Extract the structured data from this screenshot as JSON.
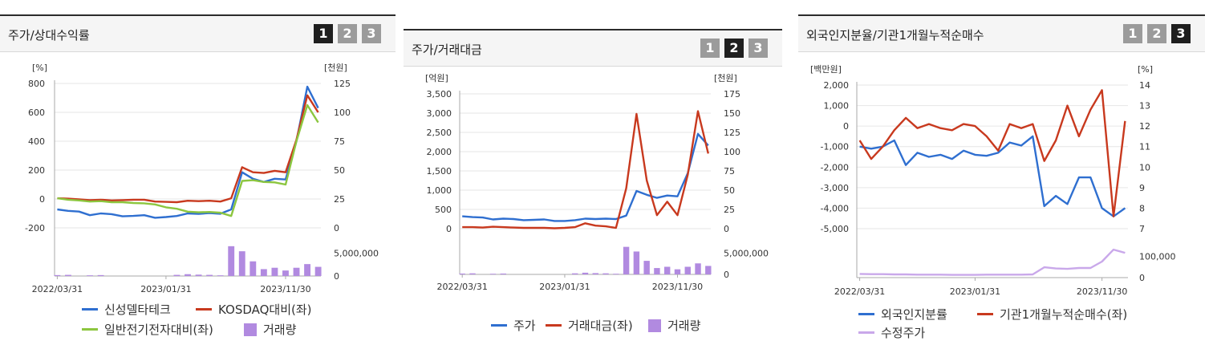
{
  "buttons": [
    "1",
    "2",
    "3"
  ],
  "colors": {
    "blue": "#2f6fd0",
    "red": "#c8391e",
    "green": "#8cc63f",
    "purple": "#b18ae0",
    "lightpurple": "#c9a8ea"
  },
  "panel1": {
    "title": "주가/상대수익률",
    "active": 0,
    "left_unit": "[%]",
    "right_unit": "[천원]",
    "legend": [
      {
        "label": "신성델타테크",
        "kind": "line",
        "color": "#2f6fd0"
      },
      {
        "label": "KOSDAQ대비(좌)",
        "kind": "line",
        "color": "#c8391e"
      },
      {
        "label": "일반전기전자대비(좌)",
        "kind": "line",
        "color": "#8cc63f"
      },
      {
        "label": "거래량",
        "kind": "box",
        "color": "#b18ae0"
      }
    ]
  },
  "panel2": {
    "title": "주가/거래대금",
    "active": 1,
    "left_unit": "[억원]",
    "right_unit": "[천원]",
    "legend": [
      {
        "label": "주가",
        "kind": "line",
        "color": "#2f6fd0"
      },
      {
        "label": "거래대금(좌)",
        "kind": "line",
        "color": "#c8391e"
      },
      {
        "label": "거래량",
        "kind": "box",
        "color": "#b18ae0"
      }
    ]
  },
  "panel3": {
    "title": "외국인지분율/기관1개월누적순매수",
    "active": 2,
    "left_unit": "[백만원]",
    "right_unit": "[%]",
    "legend": [
      {
        "label": "외국인지분률",
        "kind": "line",
        "color": "#2f6fd0"
      },
      {
        "label": "기관1개월누적순매수(좌)",
        "kind": "line",
        "color": "#c8391e"
      },
      {
        "label": "수정주가",
        "kind": "line",
        "color": "#c9a8ea"
      }
    ]
  },
  "chart_data": [
    {
      "type": "line",
      "x_ticks": [
        "2022/03/31",
        "2023/01/31",
        "2023/11/30"
      ],
      "y_left": {
        "range": [
          -200,
          800
        ],
        "ticks": [
          -200,
          0,
          200,
          400,
          600,
          800
        ]
      },
      "y_right": {
        "range": [
          0,
          125
        ],
        "ticks": [
          0,
          25,
          50,
          75,
          100,
          125
        ]
      },
      "series": [
        {
          "name": "신성델타테크",
          "axis": "left",
          "values": [
            -72,
            -82,
            -87,
            -112,
            -100,
            -105,
            -120,
            -117,
            -112,
            -130,
            -125,
            -118,
            -100,
            -103,
            -98,
            -102,
            -72,
            185,
            140,
            118,
            140,
            135,
            400,
            778,
            630
          ]
        },
        {
          "name": "KOSDAQ대비(좌)",
          "axis": "left",
          "values": [
            5,
            2,
            -2,
            -8,
            -5,
            -10,
            -8,
            -5,
            -5,
            -18,
            -20,
            -22,
            -12,
            -15,
            -12,
            -18,
            5,
            220,
            185,
            180,
            195,
            185,
            410,
            718,
            600
          ]
        },
        {
          "name": "일반전기전자대비(좌)",
          "axis": "left",
          "values": [
            5,
            -5,
            -10,
            -18,
            -15,
            -22,
            -22,
            -28,
            -30,
            -38,
            -58,
            -68,
            -88,
            -92,
            -90,
            -95,
            -118,
            125,
            130,
            118,
            115,
            100,
            400,
            650,
            530
          ]
        }
      ],
      "volume": {
        "name": "거래량",
        "tick": "5,000,000",
        "range": [
          0,
          7000000
        ],
        "values": [
          200000,
          250000,
          0,
          150000,
          200000,
          0,
          0,
          0,
          0,
          0,
          0,
          250000,
          400000,
          300000,
          250000,
          150000,
          6500000,
          5400000,
          3200000,
          1500000,
          1800000,
          1200000,
          1800000,
          2600000,
          2000000
        ]
      }
    },
    {
      "type": "line",
      "x_ticks": [
        "2022/03/31",
        "2023/01/31",
        "2023/11/30"
      ],
      "y_left": {
        "range": [
          0,
          3500
        ],
        "ticks": [
          0,
          500,
          1000,
          1500,
          2000,
          2500,
          3000,
          "3,500"
        ]
      },
      "y_right": {
        "range": [
          0,
          175
        ],
        "ticks": [
          0,
          25,
          50,
          75,
          100,
          125,
          150,
          175
        ]
      },
      "y_left_labels": [
        "0",
        "500",
        "1,000",
        "1,500",
        "2,000",
        "2,500",
        "3,000",
        "3,500"
      ],
      "series": [
        {
          "name": "주가",
          "axis": "right",
          "values": [
            16,
            15,
            14.5,
            12,
            13,
            12.5,
            11,
            11.5,
            12,
            10,
            10,
            11,
            13,
            12.5,
            13,
            12.5,
            17,
            49,
            44,
            40,
            43,
            42,
            72,
            123,
            108
          ]
        },
        {
          "name": "거래대금(좌)",
          "axis": "left",
          "values": [
            40,
            40,
            30,
            50,
            40,
            30,
            20,
            20,
            20,
            10,
            20,
            40,
            140,
            80,
            60,
            20,
            1050,
            2980,
            1250,
            350,
            700,
            350,
            1400,
            3050,
            1950
          ]
        }
      ],
      "volume": {
        "name": "거래량",
        "tick": "5,000,000",
        "range": [
          0,
          7000000
        ],
        "values": [
          200000,
          250000,
          0,
          150000,
          200000,
          0,
          0,
          0,
          0,
          0,
          0,
          250000,
          400000,
          300000,
          250000,
          150000,
          6500000,
          5400000,
          3200000,
          1500000,
          1800000,
          1200000,
          1800000,
          2600000,
          2000000
        ]
      }
    },
    {
      "type": "line",
      "x_ticks": [
        "2022/03/31",
        "2023/01/31",
        "2023/11/30"
      ],
      "y_left": {
        "range": [
          -5000,
          2000
        ],
        "ticks": [
          -5000,
          -4000,
          -3000,
          -2000,
          -1000,
          0,
          1000,
          2000
        ]
      },
      "y_left_labels": [
        "-5,000",
        "-4,000",
        "-3,000",
        "-2,000",
        "-1,000",
        "0",
        "1,000",
        "2,000"
      ],
      "y_right": {
        "range": [
          7,
          14
        ],
        "ticks": [
          7,
          8,
          9,
          10,
          11,
          12,
          13,
          14
        ]
      },
      "series": [
        {
          "name": "외국인지분률",
          "axis": "right",
          "values": [
            11.0,
            10.9,
            11.0,
            11.3,
            10.1,
            10.7,
            10.5,
            10.6,
            10.4,
            10.8,
            10.6,
            10.55,
            10.7,
            11.2,
            11.05,
            11.5,
            8.1,
            8.6,
            8.2,
            9.5,
            9.5,
            8.0,
            7.6,
            8.0
          ]
        },
        {
          "name": "기관1개월누적순매수(좌)",
          "axis": "left",
          "values": [
            -700,
            -1600,
            -1000,
            -200,
            400,
            -100,
            100,
            -100,
            -200,
            100,
            0,
            -500,
            -1200,
            100,
            -100,
            100,
            -1700,
            -700,
            1000,
            -500,
            800,
            1750,
            -4400,
            250
          ]
        },
        {
          "name": "수정주가",
          "axis": "vol",
          "values": [
            16,
            15,
            15,
            14,
            14,
            13,
            13,
            13,
            12,
            12,
            12,
            13,
            13,
            13,
            13,
            14,
            45,
            40,
            38,
            42,
            42,
            70,
            122,
            108
          ]
        }
      ],
      "volume": {
        "tick": "100,000",
        "range": [
          0,
          150000
        ]
      }
    }
  ]
}
